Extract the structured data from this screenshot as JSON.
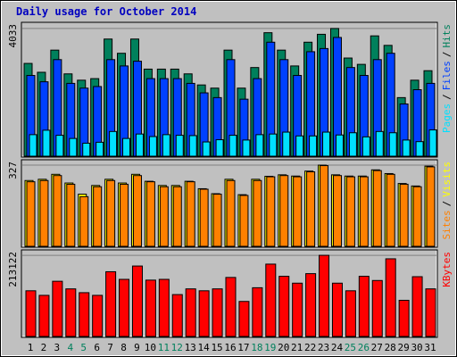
{
  "chart_data": [
    {
      "type": "bar",
      "title": "Daily usage for October 2014",
      "ylim": [
        0,
        4200
      ],
      "yticks": [
        4033
      ],
      "legend_separator": "/",
      "series": [
        {
          "name": "Hits",
          "color": "#00805c",
          "values": [
            2930,
            2650,
            3350,
            2600,
            2400,
            2450,
            3700,
            3250,
            3700,
            2750,
            2750,
            2750,
            2600,
            2250,
            2150,
            3350,
            2150,
            2800,
            3900,
            3350,
            2850,
            3600,
            3850,
            4033,
            3100,
            2900,
            3800,
            3500,
            1850,
            2400,
            2700
          ]
        },
        {
          "name": "Files",
          "color": "#0040ff",
          "values": [
            2550,
            2350,
            3050,
            2300,
            2150,
            2200,
            3050,
            2850,
            3000,
            2450,
            2450,
            2450,
            2300,
            2000,
            1850,
            3050,
            1800,
            2450,
            3600,
            3050,
            2550,
            3300,
            3400,
            3750,
            2800,
            2550,
            3050,
            3250,
            1650,
            2100,
            2300
          ]
        },
        {
          "name": "Pages",
          "color": "#00e0ff",
          "values": [
            680,
            820,
            660,
            560,
            410,
            440,
            780,
            560,
            700,
            620,
            680,
            660,
            650,
            450,
            520,
            660,
            510,
            680,
            700,
            760,
            640,
            640,
            760,
            670,
            740,
            610,
            780,
            740,
            510,
            460,
            830
          ]
        }
      ]
    },
    {
      "type": "bar",
      "ylim": [
        0,
        345
      ],
      "yticks": [
        327
      ],
      "legend_separator": "/",
      "series": [
        {
          "name": "Visits",
          "color": "#ffff00",
          "values": [
            265,
            270,
            290,
            255,
            210,
            245,
            270,
            255,
            290,
            262,
            245,
            245,
            262,
            232,
            212,
            270,
            208,
            270,
            282,
            288,
            283,
            303,
            327,
            288,
            283,
            283,
            308,
            293,
            253,
            243,
            323
          ]
        },
        {
          "name": "Sites",
          "color": "#ff8000",
          "values": [
            260,
            265,
            285,
            250,
            200,
            240,
            265,
            250,
            285,
            260,
            240,
            240,
            260,
            230,
            210,
            265,
            205,
            265,
            280,
            285,
            280,
            300,
            325,
            285,
            280,
            280,
            305,
            290,
            250,
            240,
            320
          ]
        }
      ]
    },
    {
      "type": "bar",
      "ylim": [
        0,
        225000
      ],
      "yticks": [
        213122
      ],
      "categories": [
        "1",
        "2",
        "3",
        "4",
        "5",
        "6",
        "7",
        "8",
        "9",
        "10",
        "11",
        "12",
        "13",
        "14",
        "15",
        "16",
        "17",
        "18",
        "19",
        "20",
        "21",
        "22",
        "23",
        "24",
        "25",
        "26",
        "27",
        "28",
        "29",
        "30",
        "31"
      ],
      "label_colors": [
        "#000",
        "#000",
        "#000",
        "#00805c",
        "#00805c",
        "#000",
        "#000",
        "#000",
        "#000",
        "#000",
        "#00805c",
        "#00805c",
        "#000",
        "#000",
        "#000",
        "#000",
        "#000",
        "#00805c",
        "#00805c",
        "#000",
        "#000",
        "#000",
        "#000",
        "#000",
        "#00805c",
        "#00805c",
        "#000",
        "#000",
        "#000",
        "#000",
        "#000"
      ],
      "series": [
        {
          "name": "KBytes",
          "color": "#ff0000",
          "values": [
            120000,
            108000,
            145000,
            125000,
            115000,
            108000,
            170000,
            150000,
            185000,
            148000,
            150000,
            110000,
            125000,
            120000,
            125000,
            155000,
            92000,
            128000,
            190000,
            158000,
            140000,
            165000,
            213122,
            140000,
            120000,
            158000,
            147000,
            204000,
            95000,
            157000,
            125000
          ]
        }
      ]
    }
  ]
}
